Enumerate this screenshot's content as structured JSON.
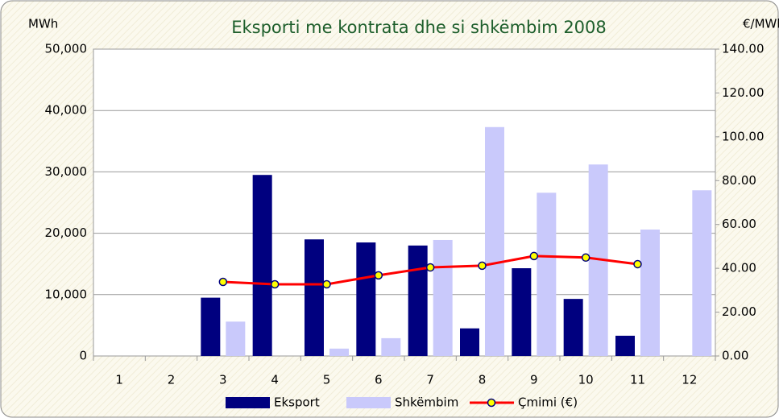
{
  "chart_data": {
    "type": "bar_line",
    "title": "Eksporti me kontrata dhe si shkëmbim 2008",
    "y_unit": "MWh",
    "y2_unit": "€/MWh",
    "categories": [
      "1",
      "2",
      "3",
      "4",
      "5",
      "6",
      "7",
      "8",
      "9",
      "10",
      "11",
      "12"
    ],
    "series": [
      {
        "name": "Eksport",
        "color": "#00007f",
        "values": [
          0,
          0,
          9500,
          29500,
          19000,
          18500,
          18000,
          4500,
          14300,
          9300,
          3300,
          0
        ]
      },
      {
        "name": "Shkëmbim",
        "color": "#c9c9fb",
        "values": [
          0,
          0,
          5600,
          0,
          1200,
          2900,
          18900,
          37300,
          26600,
          31200,
          20600,
          27000
        ]
      },
      {
        "name": "Çmimi (€)",
        "color": "#ff0000",
        "marker_color": "#ffff00",
        "axis": "y2",
        "values": [
          null,
          null,
          33.8,
          32.7,
          32.7,
          36.8,
          40.4,
          41.2,
          45.6,
          44.9,
          41.9,
          null
        ]
      }
    ],
    "ylim": [
      0,
      50000
    ],
    "yticks": [
      {
        "value": 0,
        "label": "0"
      },
      {
        "value": 10000,
        "label": "10,000"
      },
      {
        "value": 20000,
        "label": "20,000"
      },
      {
        "value": 30000,
        "label": "30,000"
      },
      {
        "value": 40000,
        "label": "40,000"
      },
      {
        "value": 50000,
        "label": "50,000"
      }
    ],
    "y2lim": [
      0,
      140
    ],
    "y2ticks": [
      {
        "value": 0,
        "label": "0.00"
      },
      {
        "value": 20,
        "label": "20.00"
      },
      {
        "value": 40,
        "label": "40.00"
      },
      {
        "value": 60,
        "label": "60.00"
      },
      {
        "value": 80,
        "label": "80.00"
      },
      {
        "value": 100,
        "label": "100.00"
      },
      {
        "value": 120,
        "label": "120.00"
      },
      {
        "value": 140,
        "label": "140.00"
      }
    ],
    "grid": true,
    "legend": "bottom"
  }
}
